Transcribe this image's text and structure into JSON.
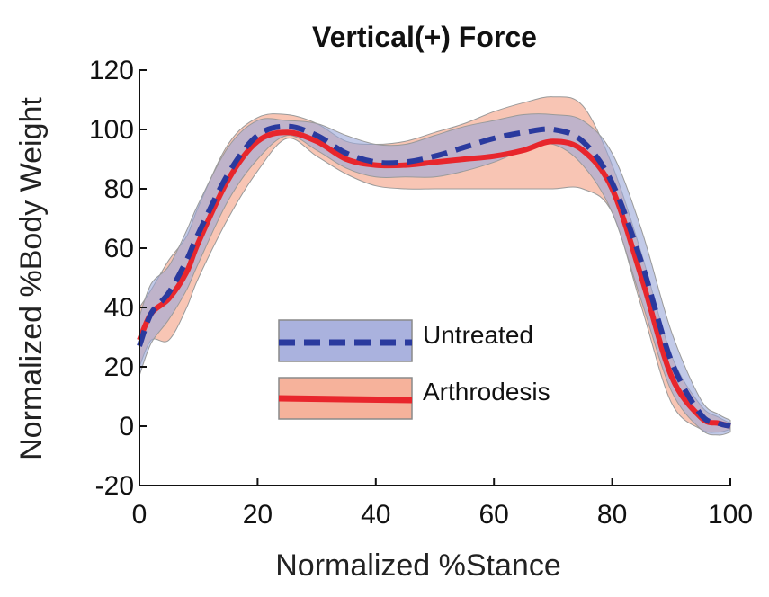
{
  "chart_data": {
    "type": "line",
    "title": "Vertical(+) Force",
    "xlabel": "Normalized %Stance",
    "ylabel": "Normalized %Body Weight",
    "xlim": [
      0,
      100
    ],
    "ylim": [
      -20,
      120
    ],
    "xticks": [
      0,
      20,
      40,
      60,
      80,
      100
    ],
    "yticks": [
      -20,
      0,
      20,
      40,
      60,
      80,
      100,
      120
    ],
    "grid": false,
    "legend_position": "center-left",
    "x": [
      0,
      2,
      5,
      8,
      10,
      15,
      20,
      25,
      30,
      35,
      40,
      45,
      50,
      55,
      60,
      65,
      70,
      75,
      80,
      85,
      90,
      95,
      98,
      100
    ],
    "series": [
      {
        "name": "Untreated",
        "style": "dashed",
        "color": "#2a3a9e",
        "band_color": "#9aa6d8",
        "values": [
          27,
          38,
          45,
          56,
          65,
          85,
          98,
          101,
          98,
          92,
          89,
          89,
          91,
          94,
          97,
          99,
          100,
          96,
          82,
          55,
          22,
          4,
          1,
          0
        ],
        "lower": [
          17,
          28,
          36,
          46,
          55,
          76,
          90,
          98,
          93,
          87,
          84,
          84,
          84,
          86,
          89,
          93,
          95,
          88,
          72,
          42,
          12,
          -1,
          -3,
          -2
        ],
        "upper": [
          37,
          48,
          54,
          66,
          75,
          94,
          103,
          103,
          102,
          98,
          95,
          95,
          98,
          101,
          103,
          105,
          105,
          103,
          92,
          66,
          32,
          9,
          4,
          2
        ]
      },
      {
        "name": "Arthrodesis",
        "style": "solid",
        "color": "#e8262c",
        "band_color": "#f6b29b",
        "values": [
          29,
          38,
          43,
          52,
          62,
          83,
          96,
          99,
          96,
          90,
          88,
          88,
          89,
          90,
          91,
          93,
          96,
          93,
          80,
          50,
          17,
          3,
          1,
          0
        ],
        "lower": [
          20,
          29,
          29,
          40,
          50,
          70,
          86,
          97,
          91,
          85,
          81,
          80,
          80,
          80,
          80,
          80,
          80,
          80,
          72,
          40,
          8,
          -1,
          -2,
          -1
        ],
        "upper": [
          40,
          46,
          56,
          64,
          74,
          95,
          104,
          105,
          102,
          96,
          95,
          96,
          99,
          102,
          106,
          109,
          111,
          108,
          88,
          58,
          24,
          7,
          3,
          1
        ]
      }
    ]
  }
}
